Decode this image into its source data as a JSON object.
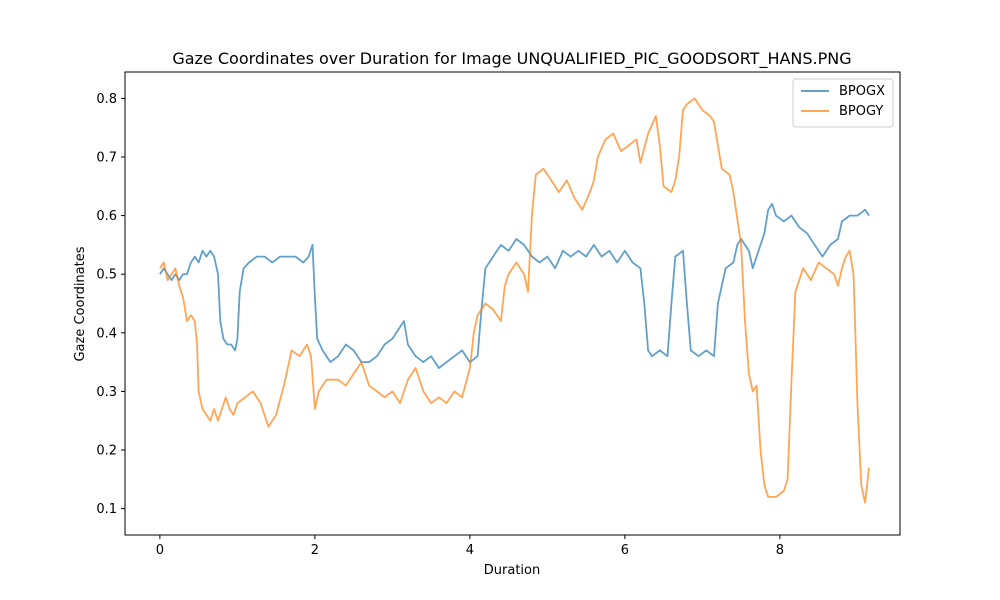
{
  "chart_data": {
    "type": "line",
    "title": "Gaze Coordinates over Duration for Image UNQUALIFIED_PIC_GOODSORT_HANS.PNG",
    "xlabel": "Duration",
    "ylabel": "Gaze Coordinates",
    "xlim": [
      -0.45,
      9.55
    ],
    "ylim": [
      0.055,
      0.845
    ],
    "xticks": [
      0,
      2,
      4,
      6,
      8
    ],
    "yticks": [
      0.1,
      0.2,
      0.3,
      0.4,
      0.5,
      0.6,
      0.7,
      0.8
    ],
    "grid": false,
    "legend": "top-right",
    "series": [
      {
        "name": "BPOGX",
        "color": "#1f77b4",
        "points": [
          [
            0.0,
            0.5
          ],
          [
            0.05,
            0.51
          ],
          [
            0.1,
            0.5
          ],
          [
            0.15,
            0.49
          ],
          [
            0.2,
            0.5
          ],
          [
            0.25,
            0.49
          ],
          [
            0.3,
            0.5
          ],
          [
            0.35,
            0.5
          ],
          [
            0.4,
            0.52
          ],
          [
            0.45,
            0.53
          ],
          [
            0.5,
            0.52
          ],
          [
            0.55,
            0.54
          ],
          [
            0.6,
            0.53
          ],
          [
            0.65,
            0.54
          ],
          [
            0.7,
            0.53
          ],
          [
            0.75,
            0.5
          ],
          [
            0.78,
            0.42
          ],
          [
            0.82,
            0.39
          ],
          [
            0.87,
            0.38
          ],
          [
            0.92,
            0.38
          ],
          [
            0.97,
            0.37
          ],
          [
            1.0,
            0.39
          ],
          [
            1.03,
            0.47
          ],
          [
            1.08,
            0.51
          ],
          [
            1.15,
            0.52
          ],
          [
            1.25,
            0.53
          ],
          [
            1.35,
            0.53
          ],
          [
            1.45,
            0.52
          ],
          [
            1.55,
            0.53
          ],
          [
            1.65,
            0.53
          ],
          [
            1.75,
            0.53
          ],
          [
            1.85,
            0.52
          ],
          [
            1.92,
            0.53
          ],
          [
            1.97,
            0.55
          ],
          [
            2.0,
            0.46
          ],
          [
            2.03,
            0.39
          ],
          [
            2.1,
            0.37
          ],
          [
            2.2,
            0.35
          ],
          [
            2.3,
            0.36
          ],
          [
            2.4,
            0.38
          ],
          [
            2.5,
            0.37
          ],
          [
            2.6,
            0.35
          ],
          [
            2.7,
            0.35
          ],
          [
            2.8,
            0.36
          ],
          [
            2.9,
            0.38
          ],
          [
            3.0,
            0.39
          ],
          [
            3.1,
            0.41
          ],
          [
            3.15,
            0.42
          ],
          [
            3.2,
            0.38
          ],
          [
            3.3,
            0.36
          ],
          [
            3.4,
            0.35
          ],
          [
            3.5,
            0.36
          ],
          [
            3.6,
            0.34
          ],
          [
            3.7,
            0.35
          ],
          [
            3.8,
            0.36
          ],
          [
            3.9,
            0.37
          ],
          [
            4.0,
            0.35
          ],
          [
            4.1,
            0.36
          ],
          [
            4.15,
            0.44
          ],
          [
            4.2,
            0.51
          ],
          [
            4.3,
            0.53
          ],
          [
            4.4,
            0.55
          ],
          [
            4.5,
            0.54
          ],
          [
            4.6,
            0.56
          ],
          [
            4.7,
            0.55
          ],
          [
            4.8,
            0.53
          ],
          [
            4.9,
            0.52
          ],
          [
            5.0,
            0.53
          ],
          [
            5.1,
            0.51
          ],
          [
            5.2,
            0.54
          ],
          [
            5.3,
            0.53
          ],
          [
            5.4,
            0.54
          ],
          [
            5.5,
            0.53
          ],
          [
            5.6,
            0.55
          ],
          [
            5.7,
            0.53
          ],
          [
            5.8,
            0.54
          ],
          [
            5.9,
            0.52
          ],
          [
            6.0,
            0.54
          ],
          [
            6.1,
            0.52
          ],
          [
            6.2,
            0.51
          ],
          [
            6.25,
            0.45
          ],
          [
            6.3,
            0.37
          ],
          [
            6.35,
            0.36
          ],
          [
            6.45,
            0.37
          ],
          [
            6.55,
            0.36
          ],
          [
            6.6,
            0.45
          ],
          [
            6.65,
            0.53
          ],
          [
            6.75,
            0.54
          ],
          [
            6.8,
            0.45
          ],
          [
            6.85,
            0.37
          ],
          [
            6.95,
            0.36
          ],
          [
            7.05,
            0.37
          ],
          [
            7.15,
            0.36
          ],
          [
            7.2,
            0.45
          ],
          [
            7.3,
            0.51
          ],
          [
            7.4,
            0.52
          ],
          [
            7.45,
            0.55
          ],
          [
            7.5,
            0.56
          ],
          [
            7.6,
            0.54
          ],
          [
            7.65,
            0.51
          ],
          [
            7.7,
            0.53
          ],
          [
            7.75,
            0.55
          ],
          [
            7.8,
            0.57
          ],
          [
            7.85,
            0.61
          ],
          [
            7.9,
            0.62
          ],
          [
            7.95,
            0.6
          ],
          [
            8.05,
            0.59
          ],
          [
            8.15,
            0.6
          ],
          [
            8.25,
            0.58
          ],
          [
            8.35,
            0.57
          ],
          [
            8.45,
            0.55
          ],
          [
            8.55,
            0.53
          ],
          [
            8.65,
            0.55
          ],
          [
            8.75,
            0.56
          ],
          [
            8.8,
            0.59
          ],
          [
            8.9,
            0.6
          ],
          [
            9.0,
            0.6
          ],
          [
            9.1,
            0.61
          ],
          [
            9.15,
            0.6
          ]
        ]
      },
      {
        "name": "BPOGY",
        "color": "#ff7f0e",
        "points": [
          [
            0.0,
            0.51
          ],
          [
            0.05,
            0.52
          ],
          [
            0.1,
            0.49
          ],
          [
            0.15,
            0.5
          ],
          [
            0.2,
            0.51
          ],
          [
            0.25,
            0.48
          ],
          [
            0.3,
            0.46
          ],
          [
            0.35,
            0.42
          ],
          [
            0.4,
            0.43
          ],
          [
            0.45,
            0.42
          ],
          [
            0.48,
            0.38
          ],
          [
            0.5,
            0.3
          ],
          [
            0.55,
            0.27
          ],
          [
            0.6,
            0.26
          ],
          [
            0.65,
            0.25
          ],
          [
            0.7,
            0.27
          ],
          [
            0.75,
            0.25
          ],
          [
            0.8,
            0.27
          ],
          [
            0.85,
            0.29
          ],
          [
            0.9,
            0.27
          ],
          [
            0.95,
            0.26
          ],
          [
            1.0,
            0.28
          ],
          [
            1.1,
            0.29
          ],
          [
            1.2,
            0.3
          ],
          [
            1.3,
            0.28
          ],
          [
            1.4,
            0.24
          ],
          [
            1.5,
            0.26
          ],
          [
            1.6,
            0.31
          ],
          [
            1.65,
            0.34
          ],
          [
            1.7,
            0.37
          ],
          [
            1.8,
            0.36
          ],
          [
            1.9,
            0.38
          ],
          [
            1.95,
            0.36
          ],
          [
            2.0,
            0.27
          ],
          [
            2.05,
            0.3
          ],
          [
            2.15,
            0.32
          ],
          [
            2.3,
            0.32
          ],
          [
            2.4,
            0.31
          ],
          [
            2.5,
            0.33
          ],
          [
            2.6,
            0.35
          ],
          [
            2.7,
            0.31
          ],
          [
            2.8,
            0.3
          ],
          [
            2.9,
            0.29
          ],
          [
            3.0,
            0.3
          ],
          [
            3.1,
            0.28
          ],
          [
            3.2,
            0.32
          ],
          [
            3.3,
            0.34
          ],
          [
            3.35,
            0.32
          ],
          [
            3.4,
            0.3
          ],
          [
            3.5,
            0.28
          ],
          [
            3.6,
            0.29
          ],
          [
            3.7,
            0.28
          ],
          [
            3.8,
            0.3
          ],
          [
            3.9,
            0.29
          ],
          [
            4.0,
            0.34
          ],
          [
            4.05,
            0.4
          ],
          [
            4.1,
            0.43
          ],
          [
            4.2,
            0.45
          ],
          [
            4.3,
            0.44
          ],
          [
            4.4,
            0.42
          ],
          [
            4.45,
            0.48
          ],
          [
            4.5,
            0.5
          ],
          [
            4.6,
            0.52
          ],
          [
            4.7,
            0.5
          ],
          [
            4.75,
            0.47
          ],
          [
            4.8,
            0.6
          ],
          [
            4.85,
            0.67
          ],
          [
            4.95,
            0.68
          ],
          [
            5.05,
            0.66
          ],
          [
            5.15,
            0.64
          ],
          [
            5.25,
            0.66
          ],
          [
            5.35,
            0.63
          ],
          [
            5.45,
            0.61
          ],
          [
            5.55,
            0.64
          ],
          [
            5.6,
            0.66
          ],
          [
            5.65,
            0.7
          ],
          [
            5.75,
            0.73
          ],
          [
            5.85,
            0.74
          ],
          [
            5.95,
            0.71
          ],
          [
            6.05,
            0.72
          ],
          [
            6.15,
            0.73
          ],
          [
            6.2,
            0.69
          ],
          [
            6.3,
            0.74
          ],
          [
            6.4,
            0.77
          ],
          [
            6.45,
            0.72
          ],
          [
            6.5,
            0.65
          ],
          [
            6.6,
            0.64
          ],
          [
            6.65,
            0.66
          ],
          [
            6.7,
            0.7
          ],
          [
            6.75,
            0.78
          ],
          [
            6.8,
            0.79
          ],
          [
            6.9,
            0.8
          ],
          [
            7.0,
            0.78
          ],
          [
            7.1,
            0.77
          ],
          [
            7.15,
            0.76
          ],
          [
            7.2,
            0.72
          ],
          [
            7.25,
            0.68
          ],
          [
            7.35,
            0.67
          ],
          [
            7.4,
            0.64
          ],
          [
            7.5,
            0.55
          ],
          [
            7.55,
            0.42
          ],
          [
            7.6,
            0.33
          ],
          [
            7.65,
            0.3
          ],
          [
            7.7,
            0.31
          ],
          [
            7.75,
            0.2
          ],
          [
            7.8,
            0.14
          ],
          [
            7.85,
            0.12
          ],
          [
            7.95,
            0.12
          ],
          [
            8.05,
            0.13
          ],
          [
            8.1,
            0.15
          ],
          [
            8.15,
            0.32
          ],
          [
            8.2,
            0.47
          ],
          [
            8.3,
            0.51
          ],
          [
            8.4,
            0.49
          ],
          [
            8.5,
            0.52
          ],
          [
            8.6,
            0.51
          ],
          [
            8.7,
            0.5
          ],
          [
            8.75,
            0.48
          ],
          [
            8.8,
            0.51
          ],
          [
            8.85,
            0.53
          ],
          [
            8.9,
            0.54
          ],
          [
            8.95,
            0.5
          ],
          [
            8.97,
            0.42
          ],
          [
            9.0,
            0.28
          ],
          [
            9.05,
            0.14
          ],
          [
            9.1,
            0.11
          ],
          [
            9.15,
            0.17
          ]
        ]
      }
    ]
  }
}
